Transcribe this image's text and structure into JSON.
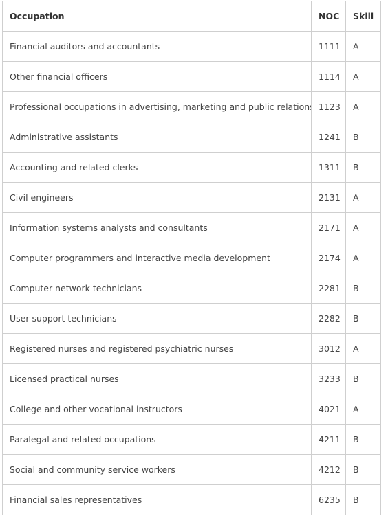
{
  "table": {
    "header": [
      "Occupation",
      "NOC",
      "Skill"
    ],
    "rows": [
      [
        "Financial auditors and accountants",
        "1111",
        "A"
      ],
      [
        "Other financial officers",
        "1114",
        "A"
      ],
      [
        "Professional occupations in advertising, marketing and public relations",
        "1123",
        "A"
      ],
      [
        "Administrative assistants",
        "1241",
        "B"
      ],
      [
        "Accounting and related clerks",
        "1311",
        "B"
      ],
      [
        "Civil engineers",
        "2131",
        "A"
      ],
      [
        "Information systems analysts and consultants",
        "2171",
        "A"
      ],
      [
        "Computer programmers and interactive media development",
        "2174",
        "A"
      ],
      [
        "Computer network technicians",
        "2281",
        "B"
      ],
      [
        "User support technicians",
        "2282",
        "B"
      ],
      [
        "Registered nurses and registered psychiatric nurses",
        "3012",
        "A"
      ],
      [
        "Licensed practical nurses",
        "3233",
        "B"
      ],
      [
        "College and other vocational instructors",
        "4021",
        "A"
      ],
      [
        "Paralegal and related occupations",
        "4211",
        "B"
      ],
      [
        "Social and community service workers",
        "4212",
        "B"
      ],
      [
        "Financial sales representatives",
        "6235",
        "B"
      ]
    ]
  }
}
